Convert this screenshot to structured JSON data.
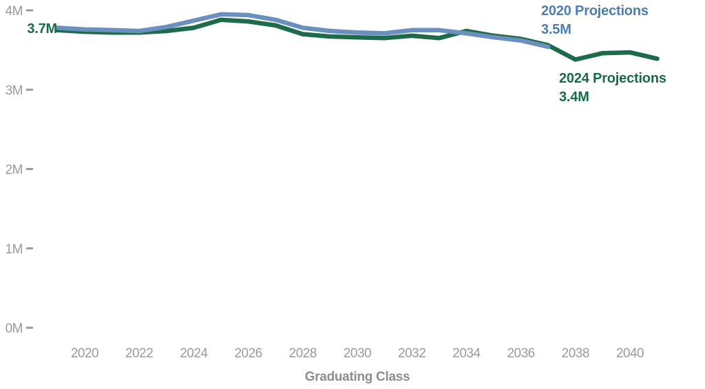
{
  "chart_data": {
    "type": "line",
    "title": "",
    "xlabel": "Graduating Class",
    "ylabel": "",
    "xlim": [
      2019,
      2041
    ],
    "ylim_M": [
      0,
      4
    ],
    "grid": false,
    "legend_position": "inline-end-labels",
    "x_tick_years": [
      2020,
      2022,
      2024,
      2026,
      2028,
      2030,
      2032,
      2034,
      2036,
      2038,
      2040
    ],
    "y_ticks": [
      {
        "label": "0M",
        "value": 0
      },
      {
        "label": "1M",
        "value": 1
      },
      {
        "label": "2M",
        "value": 2
      },
      {
        "label": "3M",
        "value": 3
      },
      {
        "label": "4M",
        "value": 4
      }
    ],
    "series": [
      {
        "name": "2024 Projections",
        "color": "#1e6b4b",
        "x": [
          2019,
          2020,
          2021,
          2022,
          2023,
          2024,
          2025,
          2026,
          2027,
          2028,
          2029,
          2030,
          2031,
          2032,
          2033,
          2034,
          2035,
          2036,
          2037,
          2038,
          2039,
          2040,
          2041
        ],
        "values_M": [
          3.75,
          3.73,
          3.72,
          3.72,
          3.74,
          3.78,
          3.88,
          3.86,
          3.81,
          3.7,
          3.67,
          3.66,
          3.65,
          3.68,
          3.65,
          3.74,
          3.68,
          3.64,
          3.56,
          3.38,
          3.46,
          3.47,
          3.39
        ]
      },
      {
        "name": "2020 Projections",
        "color": "#6b90bd",
        "x": [
          2019,
          2020,
          2021,
          2022,
          2023,
          2024,
          2025,
          2026,
          2027,
          2028,
          2029,
          2030,
          2031,
          2032,
          2033,
          2034,
          2035,
          2036,
          2037
        ],
        "values_M": [
          3.78,
          3.76,
          3.75,
          3.74,
          3.79,
          3.87,
          3.95,
          3.94,
          3.88,
          3.78,
          3.74,
          3.72,
          3.71,
          3.75,
          3.75,
          3.71,
          3.66,
          3.62,
          3.54
        ]
      }
    ],
    "annotations": {
      "start_value": "3.7M",
      "blue_label_line1": "2020 Projections",
      "blue_label_line2": "3.5M",
      "green_label_line1": "2024 Projections",
      "green_label_line2": "3.4M"
    }
  },
  "colors": {
    "line_blue": "#6b90bd",
    "line_green": "#1e6b4b",
    "text_blue": "#4e7daf",
    "text_green": "#176b48",
    "tick_gray": "#9a9a9a",
    "axis_title_gray": "#8d8d8d"
  }
}
